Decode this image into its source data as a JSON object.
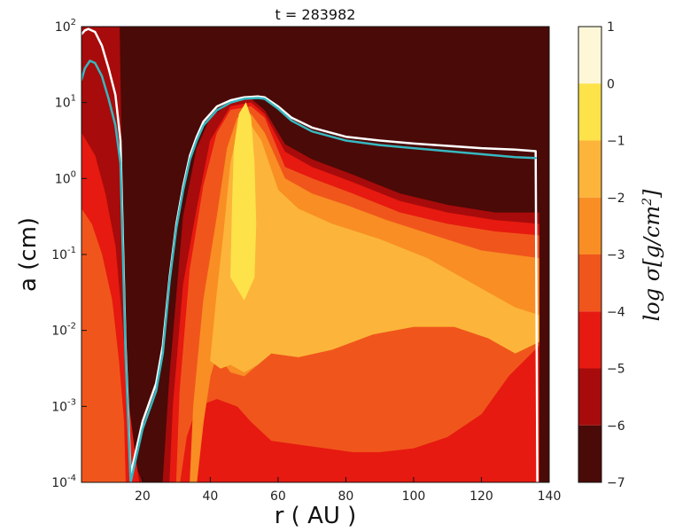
{
  "chart_data": {
    "type": "heatmap",
    "title": "t = 283982",
    "xlabel": "r ( AU )",
    "ylabel": "a (cm)",
    "xlim": [
      2,
      140
    ],
    "ylim": [
      0.0001,
      100
    ],
    "yscale": "log",
    "x_ticks": [
      {
        "value": 20,
        "label": "20"
      },
      {
        "value": 40,
        "label": "40"
      },
      {
        "value": 60,
        "label": "60"
      },
      {
        "value": 80,
        "label": "80"
      },
      {
        "value": 100,
        "label": "100"
      },
      {
        "value": 120,
        "label": "120"
      },
      {
        "value": 140,
        "label": "140"
      }
    ],
    "y_ticks": [
      {
        "exp": -4,
        "base": "10",
        "sup": "-4"
      },
      {
        "exp": -3,
        "base": "10",
        "sup": "-3"
      },
      {
        "exp": -2,
        "base": "10",
        "sup": "-2"
      },
      {
        "exp": -1,
        "base": "10",
        "sup": "-1"
      },
      {
        "exp": 0,
        "base": "10",
        "sup": "0"
      },
      {
        "exp": 1,
        "base": "10",
        "sup": "1"
      },
      {
        "exp": 2,
        "base": "10",
        "sup": "2"
      }
    ],
    "colorbar": {
      "label_main": "log σ",
      "label_unit": "[g/cm",
      "label_sup": "2",
      "label_end": "]",
      "levels": [
        {
          "value": 1,
          "label": "1"
        },
        {
          "value": 0,
          "label": "0"
        },
        {
          "value": -1,
          "label": "−1"
        },
        {
          "value": -2,
          "label": "−2"
        },
        {
          "value": -3,
          "label": "−3"
        },
        {
          "value": -4,
          "label": "−4"
        },
        {
          "value": -5,
          "label": "−5"
        },
        {
          "value": -6,
          "label": "−6"
        },
        {
          "value": -7,
          "label": "−7"
        }
      ],
      "band_colors": [
        "#fdf7d8",
        "#fde24a",
        "#fcb53a",
        "#f98e24",
        "#f0561c",
        "#e61a10",
        "#a80b0b",
        "#4a0a07"
      ]
    },
    "contour_regions": [
      {
        "level": -6,
        "color": "#a80b0b",
        "points": [
          [
            2,
            12
          ],
          [
            6,
            8
          ],
          [
            10,
            5
          ],
          [
            13,
            2.5
          ],
          [
            15,
            -2.8
          ],
          [
            18,
            -3.8
          ],
          [
            20,
            -4
          ],
          [
            2,
            -4
          ]
        ]
      },
      {
        "level": -6,
        "color": "#a80b0b",
        "points": [
          [
            26,
            -4
          ],
          [
            28,
            -2.6
          ],
          [
            32,
            -0.5
          ],
          [
            36,
            0.4
          ],
          [
            40,
            0.8
          ],
          [
            46,
            1.0
          ],
          [
            52,
            1.05
          ],
          [
            56,
            0.9
          ],
          [
            62,
            0.45
          ],
          [
            70,
            0.25
          ],
          [
            82,
            0.05
          ],
          [
            96,
            -0.2
          ],
          [
            110,
            -0.35
          ],
          [
            124,
            -0.45
          ],
          [
            137,
            -0.45
          ],
          [
            137,
            -4
          ]
        ]
      },
      {
        "level": -5,
        "color": "#e61a10",
        "points": [
          [
            2,
            0.6
          ],
          [
            6,
            0.3
          ],
          [
            9,
            -0.2
          ],
          [
            12,
            -0.9
          ],
          [
            14,
            -1.9
          ],
          [
            16,
            -3.0
          ],
          [
            18,
            -3.7
          ],
          [
            19,
            -4
          ],
          [
            2,
            -4
          ]
        ]
      },
      {
        "level": -5,
        "color": "#e61a10",
        "points": [
          [
            28,
            -4
          ],
          [
            29,
            -3.0
          ],
          [
            32,
            -1.4
          ],
          [
            36,
            -0.4
          ],
          [
            40,
            0.5
          ],
          [
            46,
            0.95
          ],
          [
            52,
            1.0
          ],
          [
            56,
            0.85
          ],
          [
            62,
            0.35
          ],
          [
            70,
            0.15
          ],
          [
            82,
            -0.05
          ],
          [
            96,
            -0.3
          ],
          [
            110,
            -0.45
          ],
          [
            124,
            -0.55
          ],
          [
            137,
            -0.6
          ],
          [
            137,
            -4
          ]
        ]
      },
      {
        "level": -4,
        "color": "#f0561c",
        "points": [
          [
            2,
            -0.4
          ],
          [
            5,
            -0.6
          ],
          [
            8,
            -1.0
          ],
          [
            11,
            -1.6
          ],
          [
            13,
            -2.4
          ],
          [
            14.5,
            -3.2
          ],
          [
            15,
            -4
          ],
          [
            2,
            -4
          ]
        ]
      },
      {
        "level": -4,
        "color": "#f0561c",
        "points": [
          [
            30,
            -4
          ],
          [
            31,
            -2.8
          ],
          [
            34,
            -1.2
          ],
          [
            38,
            -0.1
          ],
          [
            42,
            0.6
          ],
          [
            46,
            0.9
          ],
          [
            52,
            0.95
          ],
          [
            56,
            0.8
          ],
          [
            62,
            0.15
          ],
          [
            70,
            0.0
          ],
          [
            82,
            -0.2
          ],
          [
            96,
            -0.45
          ],
          [
            110,
            -0.6
          ],
          [
            124,
            -0.7
          ],
          [
            137,
            -0.75
          ],
          [
            137,
            -2.2
          ],
          [
            128,
            -2.6
          ],
          [
            120,
            -3.1
          ],
          [
            110,
            -3.4
          ],
          [
            100,
            -3.55
          ],
          [
            90,
            -3.6
          ],
          [
            82,
            -3.6
          ],
          [
            74,
            -3.55
          ],
          [
            66,
            -3.5
          ],
          [
            58,
            -3.45
          ],
          [
            52,
            -3.2
          ],
          [
            48,
            -3.0
          ],
          [
            42,
            -2.9
          ],
          [
            36,
            -3.0
          ],
          [
            33,
            -3.4
          ],
          [
            31,
            -4
          ]
        ]
      },
      {
        "level": -3,
        "color": "#f98e24",
        "points": [
          [
            34,
            -4
          ],
          [
            35,
            -3.0
          ],
          [
            38,
            -1.6
          ],
          [
            42,
            -0.5
          ],
          [
            45,
            0.4
          ],
          [
            48,
            0.8
          ],
          [
            52,
            0.85
          ],
          [
            56,
            0.6
          ],
          [
            62,
            0.0
          ],
          [
            70,
            -0.2
          ],
          [
            80,
            -0.35
          ],
          [
            92,
            -0.55
          ],
          [
            106,
            -0.75
          ],
          [
            120,
            -0.95
          ],
          [
            137,
            -1.05
          ],
          [
            137,
            -2.15
          ],
          [
            130,
            -2.3
          ],
          [
            122,
            -2.1
          ],
          [
            112,
            -1.95
          ],
          [
            100,
            -1.95
          ],
          [
            88,
            -2.05
          ],
          [
            76,
            -2.25
          ],
          [
            66,
            -2.35
          ],
          [
            58,
            -2.3
          ],
          [
            54,
            -2.45
          ],
          [
            50,
            -2.6
          ],
          [
            46,
            -2.55
          ],
          [
            42,
            -2.3
          ],
          [
            40,
            -2.6
          ],
          [
            38,
            -3.2
          ],
          [
            36,
            -4
          ]
        ]
      },
      {
        "level": -2,
        "color": "#fcb53a",
        "points": [
          [
            40,
            -2.4
          ],
          [
            42,
            -1.5
          ],
          [
            44,
            -0.7
          ],
          [
            46,
            0.2
          ],
          [
            48,
            0.6
          ],
          [
            52,
            0.7
          ],
          [
            55,
            0.5
          ],
          [
            60,
            -0.15
          ],
          [
            66,
            -0.4
          ],
          [
            76,
            -0.6
          ],
          [
            90,
            -0.8
          ],
          [
            104,
            -1.05
          ],
          [
            118,
            -1.4
          ],
          [
            130,
            -1.7
          ],
          [
            137,
            -1.8
          ],
          [
            137,
            -2.15
          ],
          [
            130,
            -2.3
          ],
          [
            122,
            -2.1
          ],
          [
            112,
            -1.95
          ],
          [
            100,
            -1.95
          ],
          [
            88,
            -2.05
          ],
          [
            76,
            -2.25
          ],
          [
            66,
            -2.35
          ],
          [
            58,
            -2.3
          ],
          [
            54,
            -2.45
          ],
          [
            50,
            -2.55
          ],
          [
            46,
            -2.45
          ],
          [
            43,
            -2.5
          ]
        ]
      },
      {
        "level": -1,
        "color": "#fde24a",
        "points": [
          [
            46,
            -1.3
          ],
          [
            46.5,
            -0.3
          ],
          [
            47,
            0.4
          ],
          [
            48.5,
            0.85
          ],
          [
            50.5,
            1.0
          ],
          [
            52,
            0.8
          ],
          [
            53,
            0.2
          ],
          [
            53.5,
            -0.6
          ],
          [
            53,
            -1.3
          ],
          [
            50,
            -1.6
          ]
        ]
      }
    ],
    "series": [
      {
        "color": "#ffffff",
        "points": [
          [
            2,
            1.9
          ],
          [
            3,
            1.95
          ],
          [
            4,
            1.97
          ],
          [
            6,
            1.93
          ],
          [
            8,
            1.75
          ],
          [
            10,
            1.45
          ],
          [
            12,
            1.1
          ],
          [
            13.5,
            0.5
          ],
          [
            15,
            -2.2
          ],
          [
            16.5,
            -3.9
          ],
          [
            17.5,
            -3.7
          ],
          [
            20,
            -3.2
          ],
          [
            24,
            -2.7
          ],
          [
            26,
            -2.2
          ],
          [
            28,
            -1.3
          ],
          [
            30,
            -0.6
          ],
          [
            32,
            -0.1
          ],
          [
            34,
            0.3
          ],
          [
            36,
            0.55
          ],
          [
            38,
            0.75
          ],
          [
            42,
            0.95
          ],
          [
            46,
            1.03
          ],
          [
            50,
            1.07
          ],
          [
            54,
            1.08
          ],
          [
            56,
            1.07
          ],
          [
            60,
            0.95
          ],
          [
            64,
            0.8
          ],
          [
            70,
            0.67
          ],
          [
            80,
            0.55
          ],
          [
            90,
            0.5
          ],
          [
            100,
            0.46
          ],
          [
            110,
            0.43
          ],
          [
            120,
            0.4
          ],
          [
            130,
            0.38
          ],
          [
            136,
            0.36
          ],
          [
            136.5,
            -4
          ]
        ]
      },
      {
        "color": "#37b8c0",
        "points": [
          [
            2,
            1.3
          ],
          [
            3,
            1.45
          ],
          [
            4.5,
            1.55
          ],
          [
            6,
            1.52
          ],
          [
            8,
            1.35
          ],
          [
            10,
            1.05
          ],
          [
            12,
            0.7
          ],
          [
            13.5,
            0.2
          ],
          [
            15,
            -2.3
          ],
          [
            16.5,
            -4
          ],
          [
            17.5,
            -3.8
          ],
          [
            20,
            -3.3
          ],
          [
            24,
            -2.8
          ],
          [
            26,
            -2.3
          ],
          [
            28,
            -1.35
          ],
          [
            30,
            -0.65
          ],
          [
            32,
            -0.15
          ],
          [
            34,
            0.25
          ],
          [
            36,
            0.5
          ],
          [
            38,
            0.7
          ],
          [
            42,
            0.9
          ],
          [
            46,
            1.0
          ],
          [
            50,
            1.05
          ],
          [
            54,
            1.06
          ],
          [
            56,
            1.05
          ],
          [
            60,
            0.92
          ],
          [
            64,
            0.76
          ],
          [
            70,
            0.62
          ],
          [
            80,
            0.5
          ],
          [
            90,
            0.44
          ],
          [
            100,
            0.4
          ],
          [
            110,
            0.36
          ],
          [
            120,
            0.32
          ],
          [
            130,
            0.28
          ],
          [
            136,
            0.27
          ]
        ]
      }
    ],
    "grid": false
  }
}
